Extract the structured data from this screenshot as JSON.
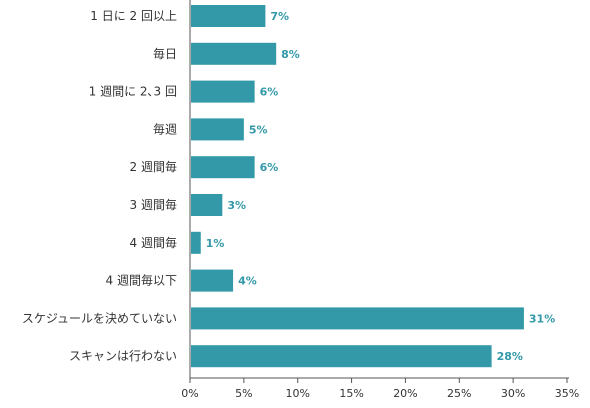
{
  "chart_data": {
    "type": "bar",
    "orientation": "horizontal",
    "categories": [
      "1 日に 2 回以上",
      "毎日",
      "1 週間に 2､3 回",
      "毎週",
      "2 週間毎",
      "3 週間毎",
      "4 週間毎",
      "4 週間毎以下",
      "スケジュールを決めていない",
      "スキャンは行わない"
    ],
    "values": [
      7,
      8,
      6,
      5,
      6,
      3,
      1,
      4,
      31,
      28
    ],
    "value_labels": [
      "7%",
      "8%",
      "6%",
      "5%",
      "6%",
      "3%",
      "1%",
      "4%",
      "31%",
      "28%"
    ],
    "title": "",
    "xlabel": "",
    "ylabel": "",
    "xlim": [
      0,
      35
    ],
    "x_ticks": [
      "0%",
      "5%",
      "10%",
      "15%",
      "20%",
      "25%",
      "30%",
      "35%"
    ],
    "grid": false,
    "legend": "none",
    "colors": {
      "bar": "#3399a8",
      "value_label": "#3399a8",
      "axis": "#555555"
    }
  }
}
